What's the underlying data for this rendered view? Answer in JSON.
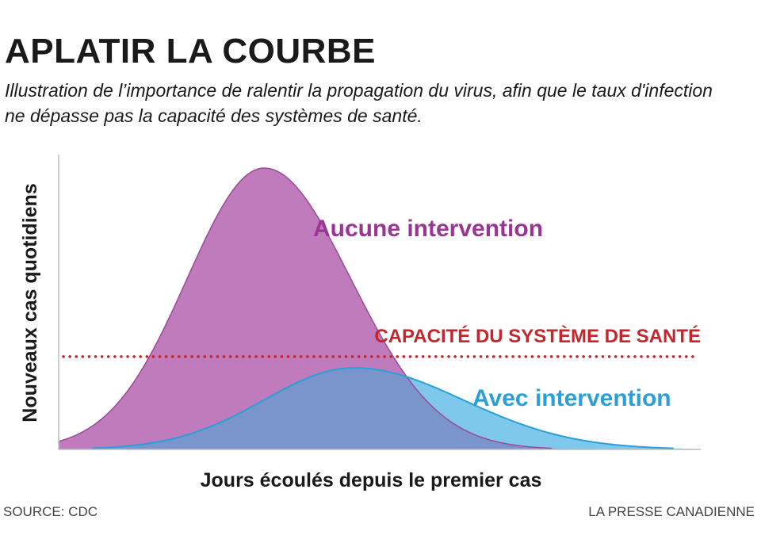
{
  "header": {
    "title": "APLATIR LA COURBE",
    "subtitle": "Illustration de l’importance de ralentir la propagation du virus, afin que le taux d'infection ne dépasse pas la capacité des systèmes de santé."
  },
  "footer": {
    "source": "SOURCE: CDC",
    "credit": "LA PRESSE CANADIENNE"
  },
  "chart_data": {
    "type": "area",
    "xlabel": "Jours écoulés depuis le premier cas",
    "ylabel": "Nouveaux cas quotidiens",
    "ticks": "none",
    "grid": false,
    "series": [
      {
        "name": "Aucune intervention",
        "color": "#c07bbd",
        "edge": "#9b4a98",
        "label_color": "#9b3593",
        "peak_x": 0.32,
        "peak_height": 1.0,
        "spread_left": 0.12,
        "spread_right": 0.135
      },
      {
        "name": "Avec intervention",
        "color": "#7ec8ec",
        "edge": "#2a9fd8",
        "label_color": "#2a9fd8",
        "peak_x": 0.46,
        "peak_height": 0.29,
        "spread_left": 0.14,
        "spread_right": 0.17
      }
    ],
    "overlap_color": "#7a94cc",
    "threshold": {
      "label": "CAPACITÉ DU SYSTÈME DE SANTÉ",
      "value": 0.33,
      "color": "#c1272d",
      "style": "dotted"
    }
  }
}
